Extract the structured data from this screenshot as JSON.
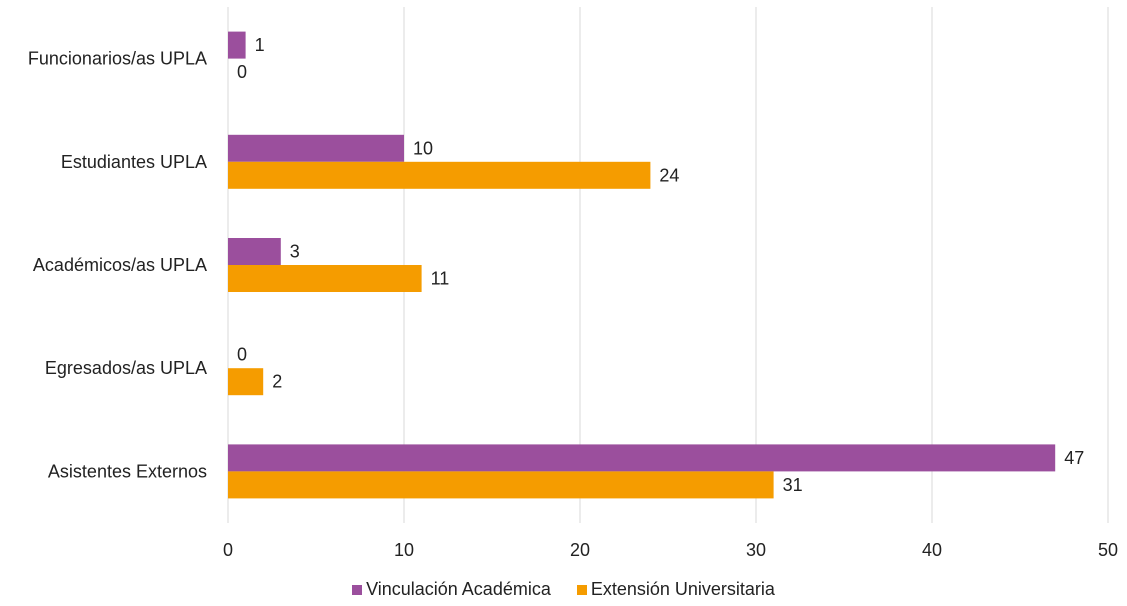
{
  "chart_data": {
    "type": "bar",
    "orientation": "horizontal",
    "categories": [
      "Funcionarios/as UPLA",
      "Estudiantes UPLA",
      "Académicos/as UPLA",
      "Egresados/as UPLA",
      "Asistentes Externos"
    ],
    "series": [
      {
        "name": "Vinculación Académica",
        "values": [
          1,
          10,
          3,
          0,
          47
        ],
        "color": "#9b4f9d"
      },
      {
        "name": "Extensión Universitaria",
        "values": [
          0,
          24,
          11,
          2,
          31
        ],
        "color": "#f59c00"
      }
    ],
    "xlim": [
      0,
      50
    ],
    "xticks": [
      0,
      10,
      20,
      30,
      40,
      50
    ],
    "grid": true,
    "legend_position": "bottom",
    "data_labels": true
  }
}
